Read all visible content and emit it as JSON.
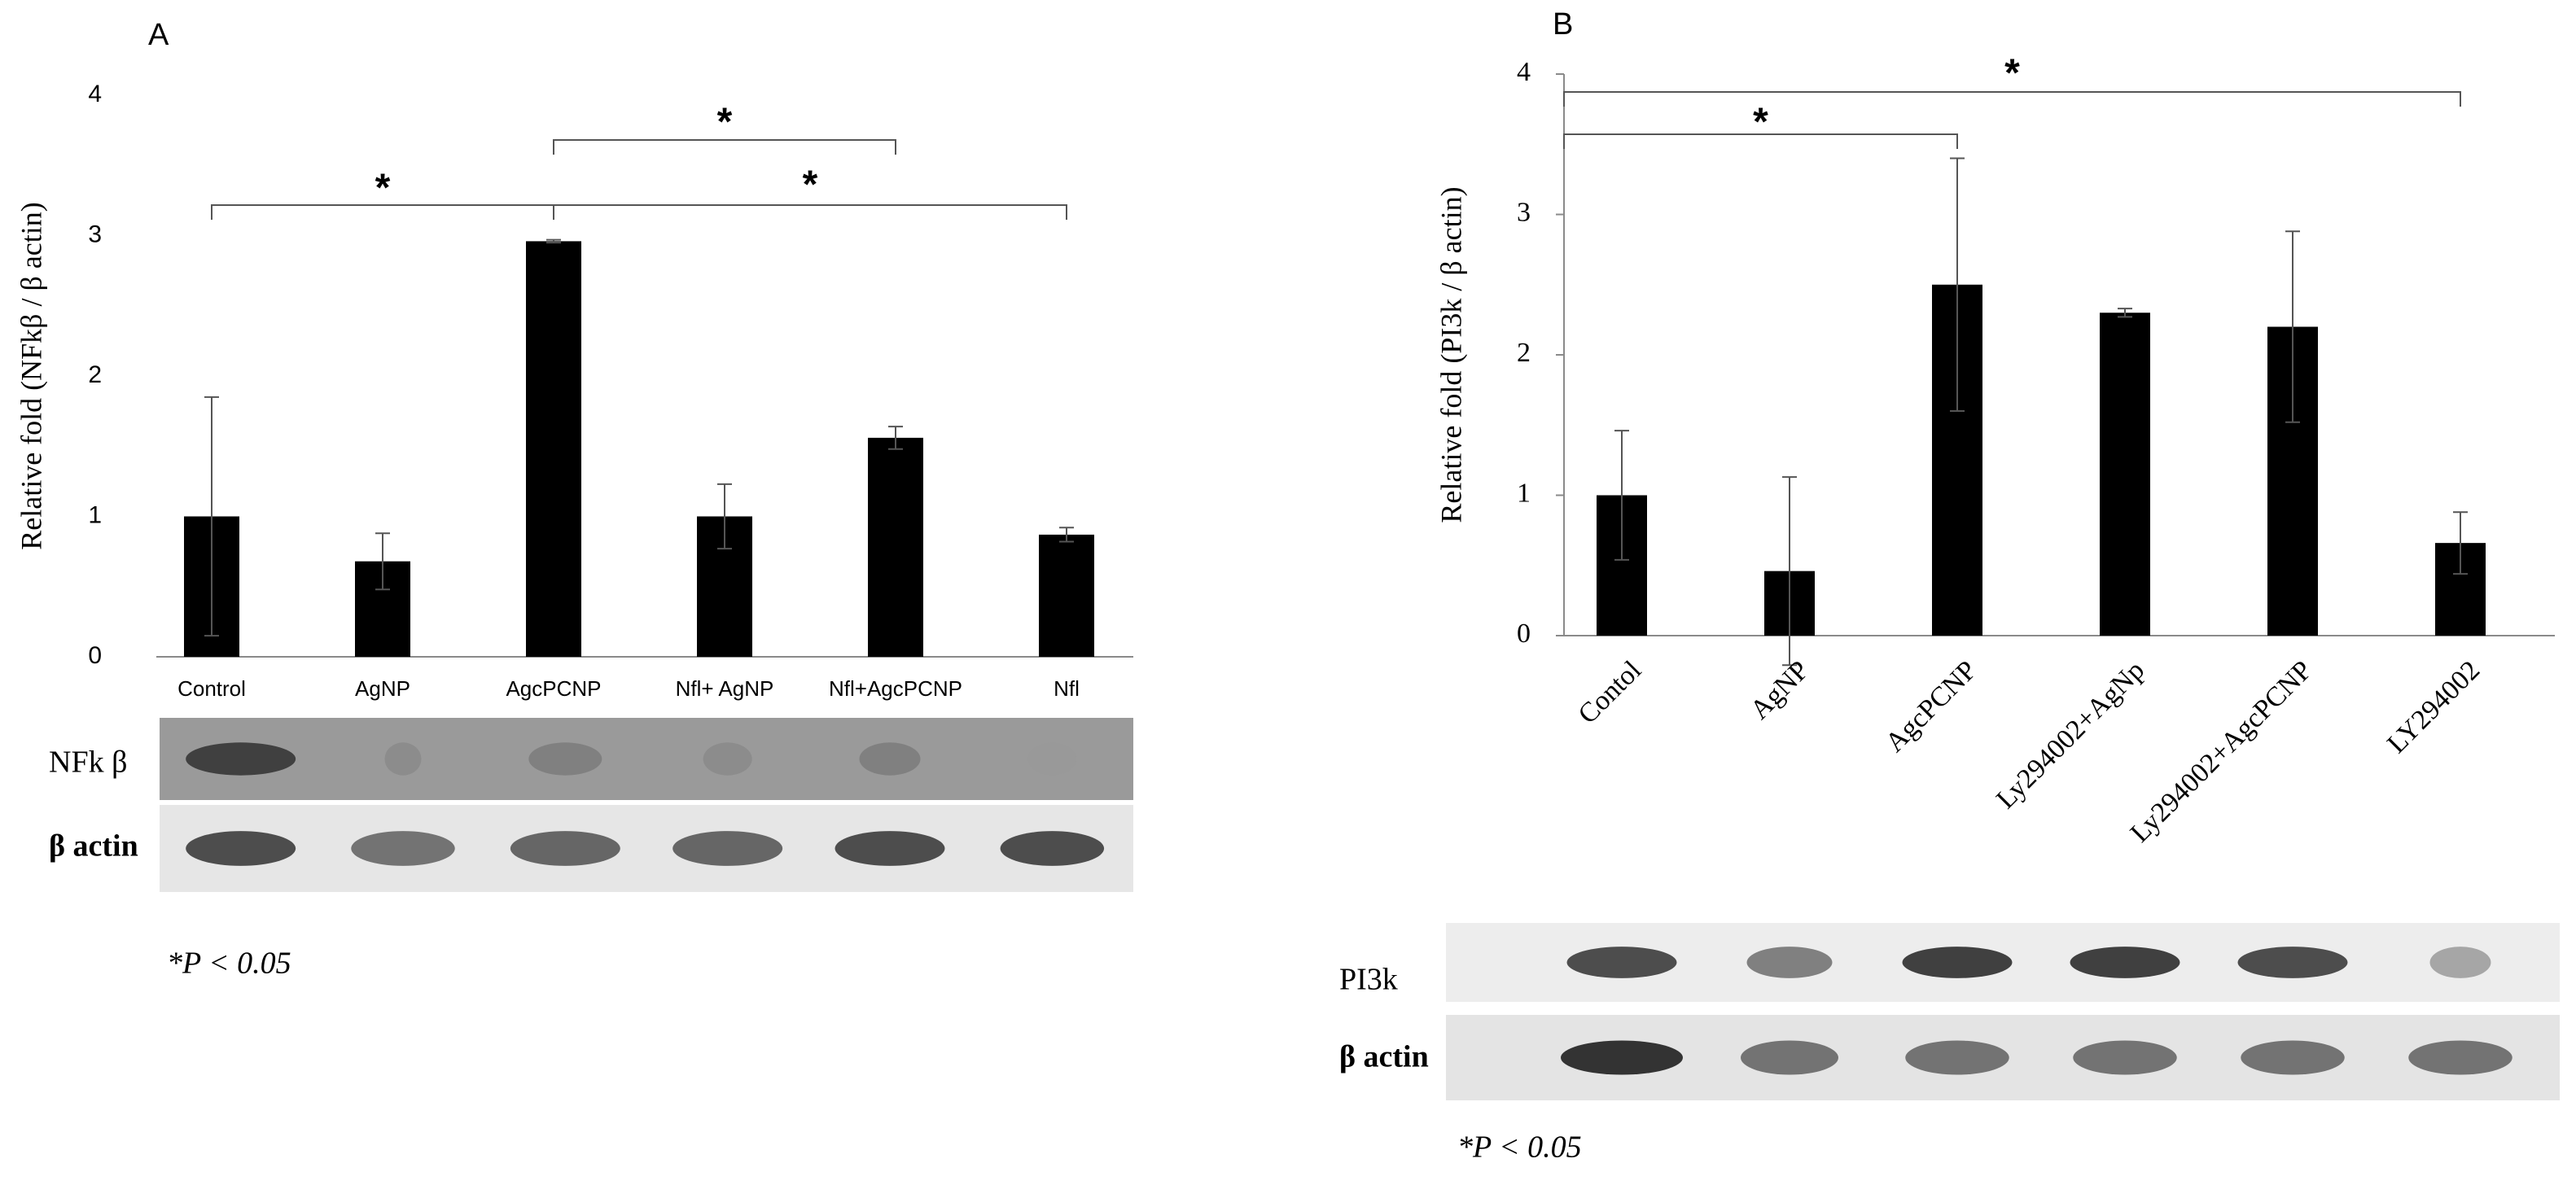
{
  "chart_data": [
    {
      "type": "bar",
      "title": "A",
      "y_label": "Relative fold (NFkβ / β actin)",
      "categories": [
        "Control",
        "AgNP",
        "AgcPCNP",
        "Nfl+ AgNP",
        "Nfl+AgcPCNP",
        "Nfl"
      ],
      "values": [
        1.0,
        0.68,
        2.96,
        1.0,
        1.56,
        0.87
      ],
      "errors": [
        0.85,
        0.2,
        0.01,
        0.23,
        0.08,
        0.05
      ],
      "color": "#000000",
      "ylim": [
        0,
        4
      ],
      "yticks": [
        0,
        1,
        2,
        3,
        4
      ],
      "annotations": [
        "*",
        "*",
        "*"
      ],
      "blot_labels": [
        "NFk β",
        "β actin"
      ],
      "footnote": "*P < 0.05"
    },
    {
      "type": "bar",
      "title": "B",
      "y_label": "Relative fold (PI3k / β actin)",
      "categories": [
        "Contol",
        "AgNP",
        "AgcPCNP",
        "Ly294002+AgNp",
        "Ly294002+AgcPCNP",
        "LY294002"
      ],
      "values": [
        1.0,
        0.46,
        2.5,
        2.3,
        2.2,
        0.66
      ],
      "errors": [
        0.46,
        0.67,
        0.9,
        0.03,
        0.68,
        0.22
      ],
      "color": "#000000",
      "ylim": [
        0,
        4
      ],
      "yticks": [
        0,
        1,
        2,
        3,
        4
      ],
      "annotations": [
        "*",
        "*"
      ],
      "blot_labels": [
        "PI3k",
        "β actin"
      ],
      "footnote": "*P < 0.05"
    }
  ]
}
